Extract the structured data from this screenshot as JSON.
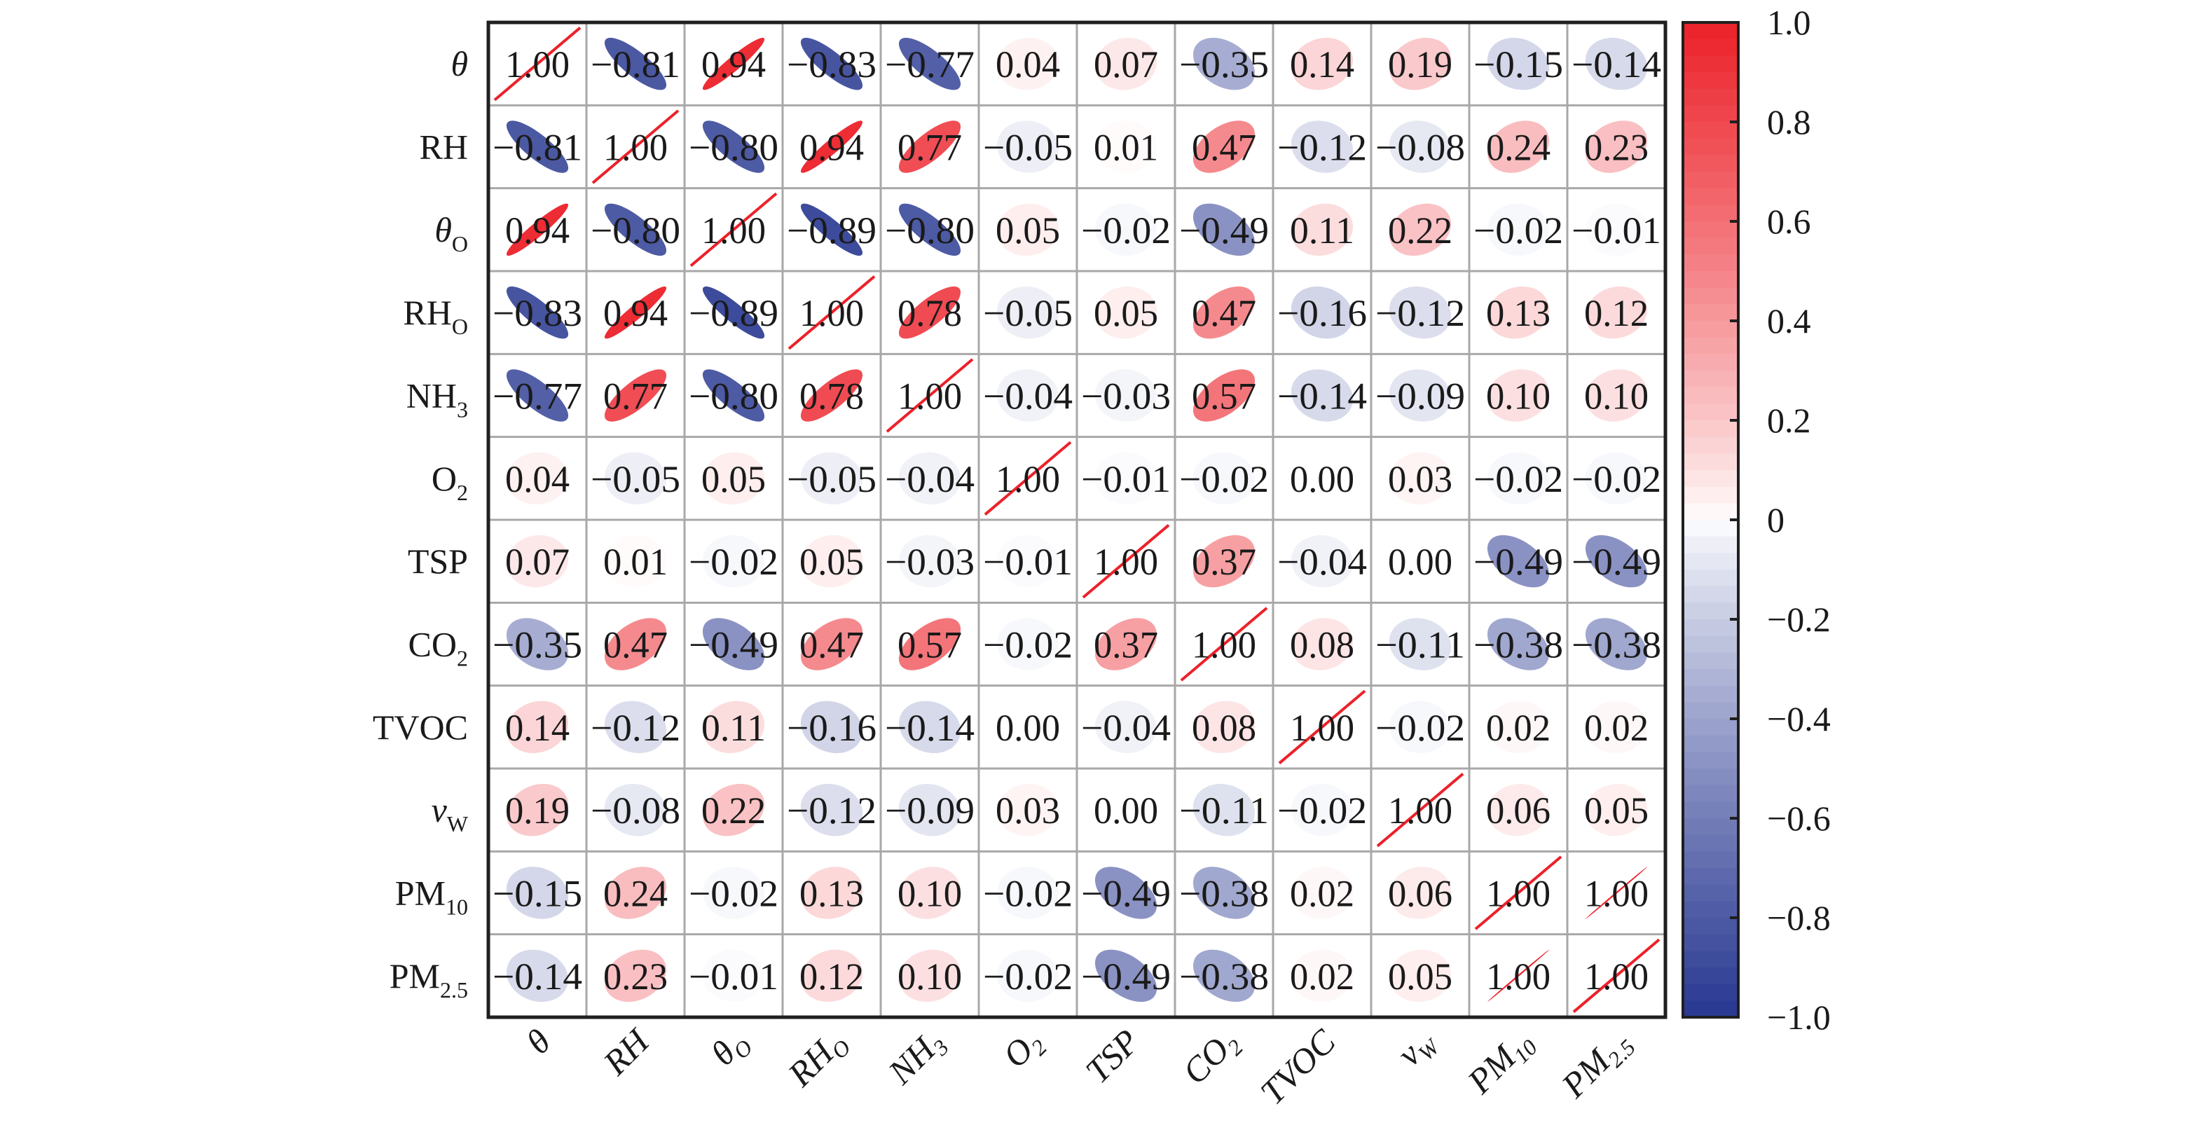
{
  "chart_data": {
    "type": "heatmap",
    "style": "correlation-ellipse-matrix",
    "variables": [
      {
        "base": "θ",
        "sub": "",
        "italic": true
      },
      {
        "base": "RH",
        "sub": "",
        "italic": false
      },
      {
        "base": "θ",
        "sub": "O",
        "italic": true
      },
      {
        "base": "RH",
        "sub": "O",
        "italic": false
      },
      {
        "base": "NH",
        "sub": "3",
        "italic": false
      },
      {
        "base": "O",
        "sub": "2",
        "italic": false
      },
      {
        "base": "TSP",
        "sub": "",
        "italic": false
      },
      {
        "base": "CO",
        "sub": "2",
        "italic": false
      },
      {
        "base": "TVOC",
        "sub": "",
        "italic": false
      },
      {
        "base": "v",
        "sub": "W",
        "italic": true
      },
      {
        "base": "PM",
        "sub": "10",
        "italic": false
      },
      {
        "base": "PM",
        "sub": "2.5",
        "italic": false
      }
    ],
    "row_labels": [
      "θ",
      "RH",
      "θO",
      "RHO",
      "NH3",
      "O2",
      "TSP",
      "CO2",
      "TVOC",
      "vW",
      "PM10",
      "PM2.5"
    ],
    "col_labels": [
      "θ",
      "RH",
      "θO",
      "RHO",
      "NH3",
      "O2",
      "TSP",
      "CO2",
      "TVOC",
      "vW",
      "PM10",
      "PM2.5"
    ],
    "matrix": [
      [
        "1.00",
        "−0.81",
        "0.94",
        "−0.83",
        "−0.77",
        "0.04",
        "0.07",
        "−0.35",
        "0.14",
        "0.19",
        "−0.15",
        "−0.14"
      ],
      [
        "−0.81",
        "1.00",
        "−0.80",
        "0.94",
        "0.77",
        "−0.05",
        "0.01",
        "0.47",
        "−0.12",
        "−0.08",
        "0.24",
        "0.23"
      ],
      [
        "0.94",
        "−0.80",
        "1.00",
        "−0.89",
        "−0.80",
        "0.05",
        "−0.02",
        "−0.49",
        "0.11",
        "0.22",
        "−0.02",
        "−0.01"
      ],
      [
        "−0.83",
        "0.94",
        "−0.89",
        "1.00",
        "0.78",
        "−0.05",
        "0.05",
        "0.47",
        "−0.16",
        "−0.12",
        "0.13",
        "0.12"
      ],
      [
        "−0.77",
        "0.77",
        "−0.80",
        "0.78",
        "1.00",
        "−0.04",
        "−0.03",
        "0.57",
        "−0.14",
        "−0.09",
        "0.10",
        "0.10"
      ],
      [
        "0.04",
        "−0.05",
        "0.05",
        "−0.05",
        "−0.04",
        "1.00",
        "−0.01",
        "−0.02",
        "0.00",
        "0.03",
        "−0.02",
        "−0.02"
      ],
      [
        "0.07",
        "0.01",
        "−0.02",
        "0.05",
        "−0.03",
        "−0.01",
        "1.00",
        "0.37",
        "−0.04",
        "0.00",
        "−0.49",
        "−0.49"
      ],
      [
        "−0.35",
        "0.47",
        "−0.49",
        "0.47",
        "0.57",
        "−0.02",
        "0.37",
        "1.00",
        "0.08",
        "−0.11",
        "−0.38",
        "−0.38"
      ],
      [
        "0.14",
        "−0.12",
        "0.11",
        "−0.16",
        "−0.14",
        "0.00",
        "−0.04",
        "0.08",
        "1.00",
        "−0.02",
        "0.02",
        "0.02"
      ],
      [
        "0.19",
        "−0.08",
        "0.22",
        "−0.12",
        "−0.09",
        "0.03",
        "0.00",
        "−0.11",
        "−0.02",
        "1.00",
        "0.06",
        "0.05"
      ],
      [
        "−0.15",
        "0.24",
        "−0.02",
        "0.13",
        "0.10",
        "−0.02",
        "−0.49",
        "−0.38",
        "0.02",
        "0.06",
        "1.00",
        "1.00"
      ],
      [
        "−0.14",
        "0.23",
        "−0.01",
        "0.12",
        "0.10",
        "−0.02",
        "−0.49",
        "−0.38",
        "0.02",
        "0.05",
        "1.00",
        "1.00"
      ]
    ],
    "colorbar": {
      "range": [
        -1.0,
        1.0
      ],
      "ticks": [
        1.0,
        0.8,
        0.6,
        0.4,
        0.2,
        0,
        -0.2,
        -0.4,
        -0.6,
        -0.8,
        -1.0
      ],
      "tick_labels": [
        "1.0",
        "0.8",
        "0.6",
        "0.4",
        "0.2",
        "0",
        "−0.2",
        "−0.4",
        "−0.6",
        "−0.8",
        "−1.0"
      ],
      "placement": "right"
    },
    "colors": {
      "positive": "#ec2129",
      "neutral": "#ffffff",
      "negative": "#283891",
      "grid": "#a8a8a8",
      "frame": "#1f1f1f",
      "text": "#1a1a1a"
    },
    "title": "",
    "xlabel": "",
    "ylabel": ""
  }
}
